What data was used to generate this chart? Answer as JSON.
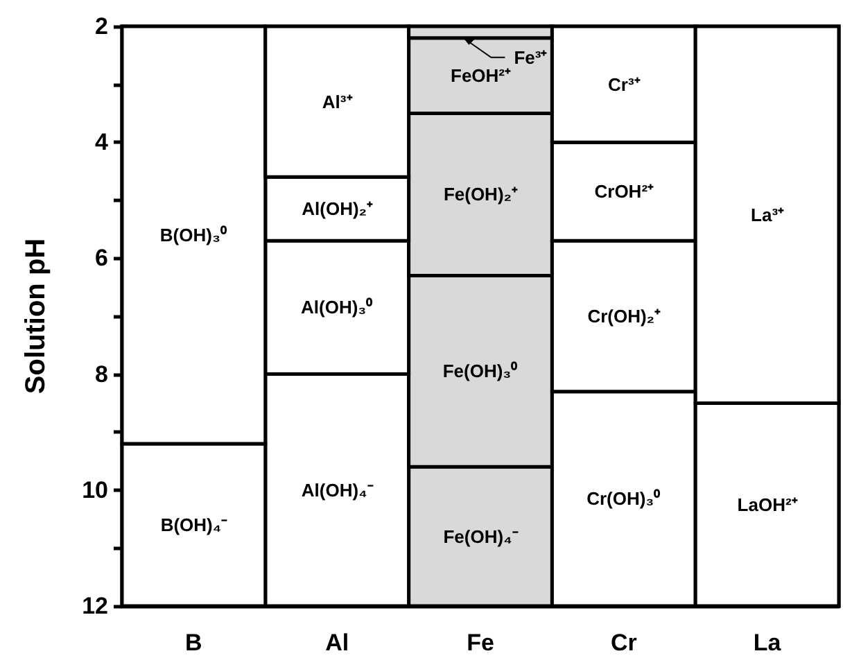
{
  "chart_data": {
    "type": "bar",
    "ylabel": "Solution pH",
    "categories": [
      "B",
      "Al",
      "Fe",
      "Cr",
      "La"
    ],
    "series": [
      {
        "values": [
          7.2,
          2.6,
          0.2,
          2.0,
          6.5
        ],
        "base": [
          2,
          2,
          2,
          2,
          2
        ],
        "colors": [
          "#ffffff",
          "#ffffff",
          "#d9d9d9",
          "#ffffff",
          "#ffffff"
        ],
        "value_labels": [
          "B(OH)₃⁰",
          "Al³⁺",
          "Fe³⁺",
          "Cr³⁺",
          "La³⁺"
        ]
      },
      {
        "values": [
          2.8,
          1.1,
          1.3,
          1.7,
          3.5
        ],
        "base": [
          9.2,
          4.6,
          2.2,
          4.0,
          8.5
        ],
        "colors": [
          "#ffffff",
          "#ffffff",
          "#d9d9d9",
          "#ffffff",
          "#ffffff"
        ],
        "value_labels": [
          "B(OH)₄⁻",
          "Al(OH)₂⁺",
          "FeOH²⁺",
          "CrOH²⁺",
          "LaOH²⁺"
        ]
      },
      {
        "values": [
          null,
          2.3,
          2.8,
          2.6,
          null
        ],
        "base": [
          null,
          5.7,
          3.5,
          5.7,
          null
        ],
        "colors": [
          null,
          "#ffffff",
          "#d9d9d9",
          "#ffffff",
          null
        ],
        "value_labels": [
          null,
          "Al(OH)₃⁰",
          "Fe(OH)₂⁺",
          "Cr(OH)₂⁺",
          null
        ]
      },
      {
        "values": [
          null,
          4.0,
          3.3,
          3.7,
          null
        ],
        "base": [
          null,
          8.0,
          6.3,
          8.3,
          null
        ],
        "colors": [
          null,
          "#ffffff",
          "#d9d9d9",
          "#ffffff",
          null
        ],
        "value_labels": [
          null,
          "Al(OH)₄⁻",
          "Fe(OH)₃⁰",
          "Cr(OH)₃⁰",
          null
        ]
      },
      {
        "values": [
          null,
          null,
          2.4,
          null,
          null
        ],
        "base": [
          null,
          null,
          9.6,
          null,
          null
        ],
        "colors": [
          null,
          null,
          "#d9d9d9",
          null,
          null
        ],
        "value_labels": [
          null,
          null,
          "Fe(OH)₄⁻",
          null,
          null
        ]
      }
    ],
    "ylim": [
      12,
      2
    ],
    "yticks": [
      2,
      {
        "value": 3,
        "label": null
      },
      4,
      {
        "value": 5,
        "label": null
      },
      6,
      {
        "value": 7,
        "label": null
      },
      8,
      {
        "value": 9,
        "label": null
      },
      10,
      {
        "value": 11,
        "label": null
      },
      12
    ]
  }
}
